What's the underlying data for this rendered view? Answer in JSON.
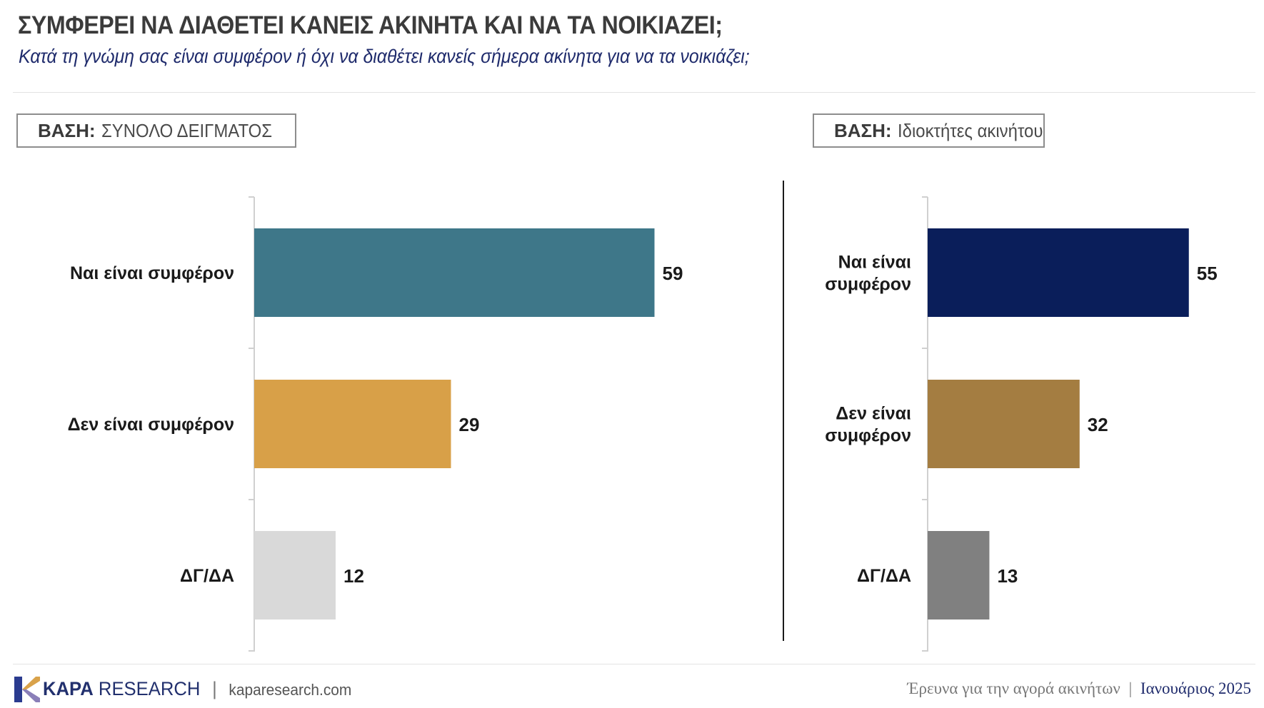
{
  "header": {
    "title": "ΣΥΜΦΕΡΕΙ ΝΑ ΔΙΑΘΕΤΕΙ ΚΑΝΕΙΣ ΑΚΙΝΗΤΑ ΚΑΙ ΝΑ ΤΑ ΝΟΙΚΙΑΖΕΙ;",
    "subtitle": "Κατά τη γνώμη σας είναι συμφέρον ή όχι να διαθέτει κανείς σήμερα ακίνητα για να τα νοικιάζει;"
  },
  "bases": {
    "left": {
      "label": "ΒΑΣΗ:",
      "value": "ΣΥΝΟΛΟ ΔΕΙΓΜΑΤΟΣ"
    },
    "right": {
      "label": "ΒΑΣΗ:",
      "value": "Ιδιοκτήτες ακινήτου"
    }
  },
  "chart_data": [
    {
      "type": "bar",
      "orientation": "horizontal",
      "base": "ΣΥΝΟΛΟ ΔΕΙΓΜΑΤΟΣ",
      "categories": [
        "Ναι είναι συμφέρον",
        "Δεν είναι συμφέρον",
        "ΔΓ/ΔΑ"
      ],
      "values": [
        59,
        29,
        12
      ],
      "colors": [
        "#3e7789",
        "#d8a048",
        "#d9d9d9"
      ],
      "xlim": [
        0,
        100
      ]
    },
    {
      "type": "bar",
      "orientation": "horizontal",
      "base": "Ιδιοκτήτες ακινήτου",
      "categories": [
        [
          "Ναι είναι",
          "συμφέρον"
        ],
        [
          "Δεν είναι",
          "συμφέρον"
        ],
        [
          "ΔΓ/ΔΑ"
        ]
      ],
      "values": [
        55,
        32,
        13
      ],
      "colors": [
        "#0a1e5a",
        "#a47d41",
        "#808080"
      ],
      "xlim": [
        0,
        100
      ]
    }
  ],
  "footer": {
    "brand_kapa": "KAPA",
    "brand_research": "RESEARCH",
    "separator": "|",
    "website": "kaparesearch.com",
    "survey": "Έρευνα για την αγορά ακινήτων",
    "pipe": "|",
    "date": "Ιανουάριος 2025"
  },
  "colors": {
    "title": "#3b3b3b",
    "subtitle": "#1f2b6c",
    "brand": "#22306e"
  }
}
